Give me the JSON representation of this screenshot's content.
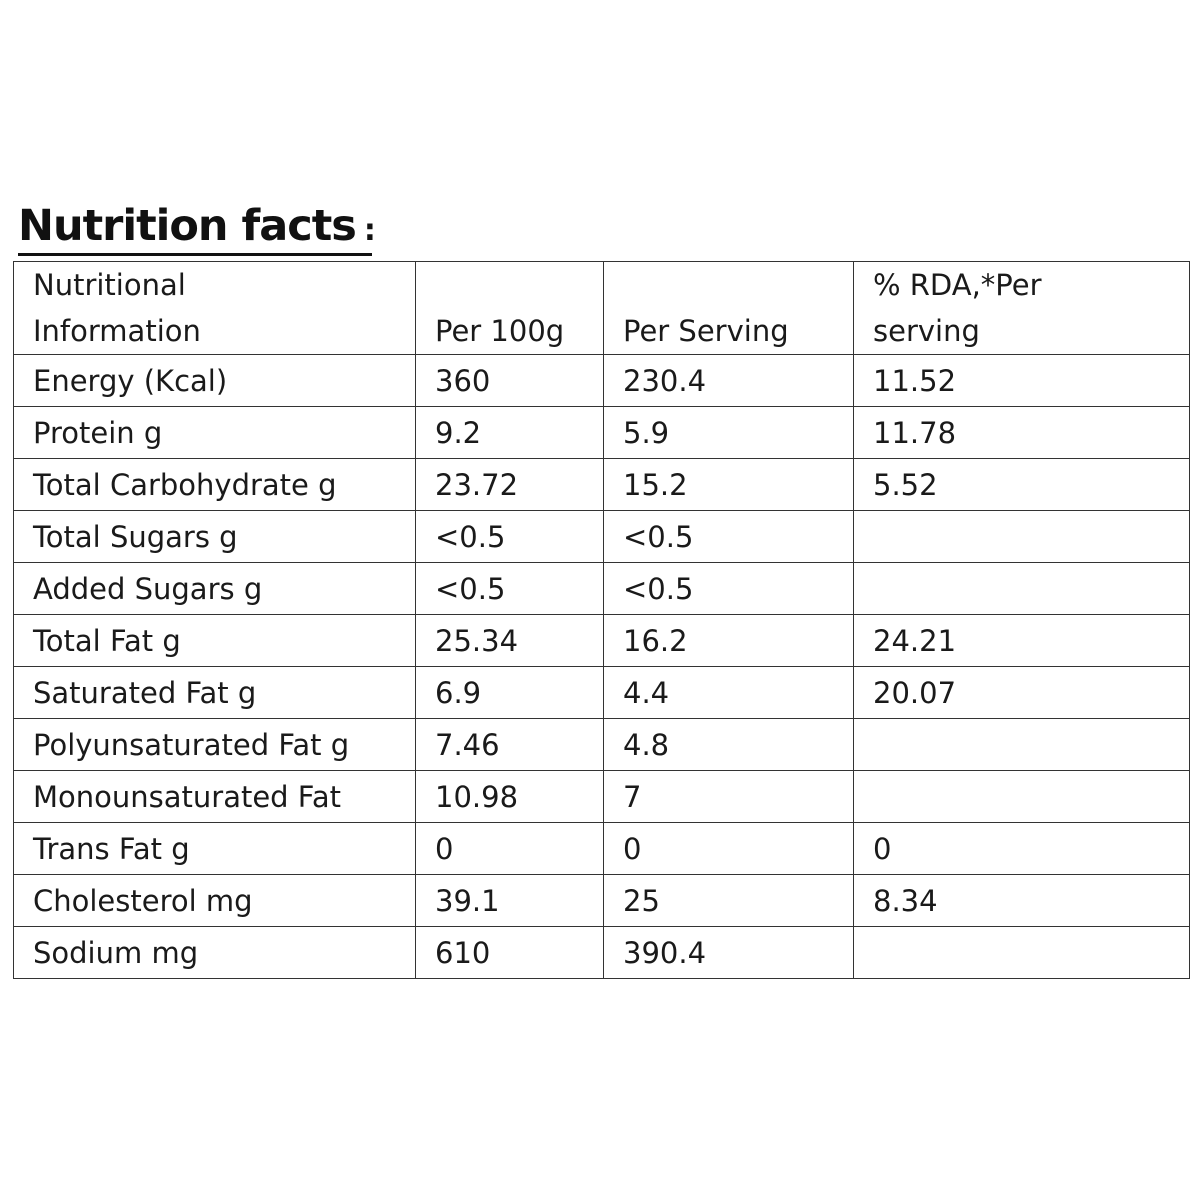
{
  "title": {
    "main": "Nutrition facts",
    "colon": ":"
  },
  "table": {
    "headers": {
      "nutrient_line1": "Nutritional",
      "nutrient_line2": "Information",
      "per_100g": "Per 100g",
      "per_serving": "Per Serving",
      "rda_line1": "% RDA,*Per",
      "rda_line2": "serving"
    },
    "rows": [
      {
        "nutrient": "Energy (Kcal)",
        "per_100g": "360",
        "per_serving": "230.4",
        "rda": "11.52"
      },
      {
        "nutrient": "Protein g",
        "per_100g": "9.2",
        "per_serving": "5.9",
        "rda": "11.78"
      },
      {
        "nutrient": "Total Carbohydrate g",
        "per_100g": "23.72",
        "per_serving": "15.2",
        "rda": "5.52"
      },
      {
        "nutrient": "Total Sugars g",
        "per_100g": "<0.5",
        "per_serving": "<0.5",
        "rda": ""
      },
      {
        "nutrient": "Added Sugars g",
        "per_100g": "<0.5",
        "per_serving": "<0.5",
        "rda": ""
      },
      {
        "nutrient": "Total Fat g",
        "per_100g": "25.34",
        "per_serving": "16.2",
        "rda": "24.21"
      },
      {
        "nutrient": "Saturated Fat g",
        "per_100g": "6.9",
        "per_serving": "4.4",
        "rda": "20.07"
      },
      {
        "nutrient": "Polyunsaturated Fat g",
        "per_100g": "7.46",
        "per_serving": "4.8",
        "rda": ""
      },
      {
        "nutrient": "Monounsaturated Fat",
        "per_100g": "10.98",
        "per_serving": "7",
        "rda": ""
      },
      {
        "nutrient": "Trans Fat g",
        "per_100g": "0",
        "per_serving": "0",
        "rda": "0"
      },
      {
        "nutrient": "Cholesterol mg",
        "per_100g": "39.1",
        "per_serving": "25",
        "rda": "8.34"
      },
      {
        "nutrient": "Sodium mg",
        "per_100g": "610",
        "per_serving": "390.4",
        "rda": ""
      }
    ]
  }
}
